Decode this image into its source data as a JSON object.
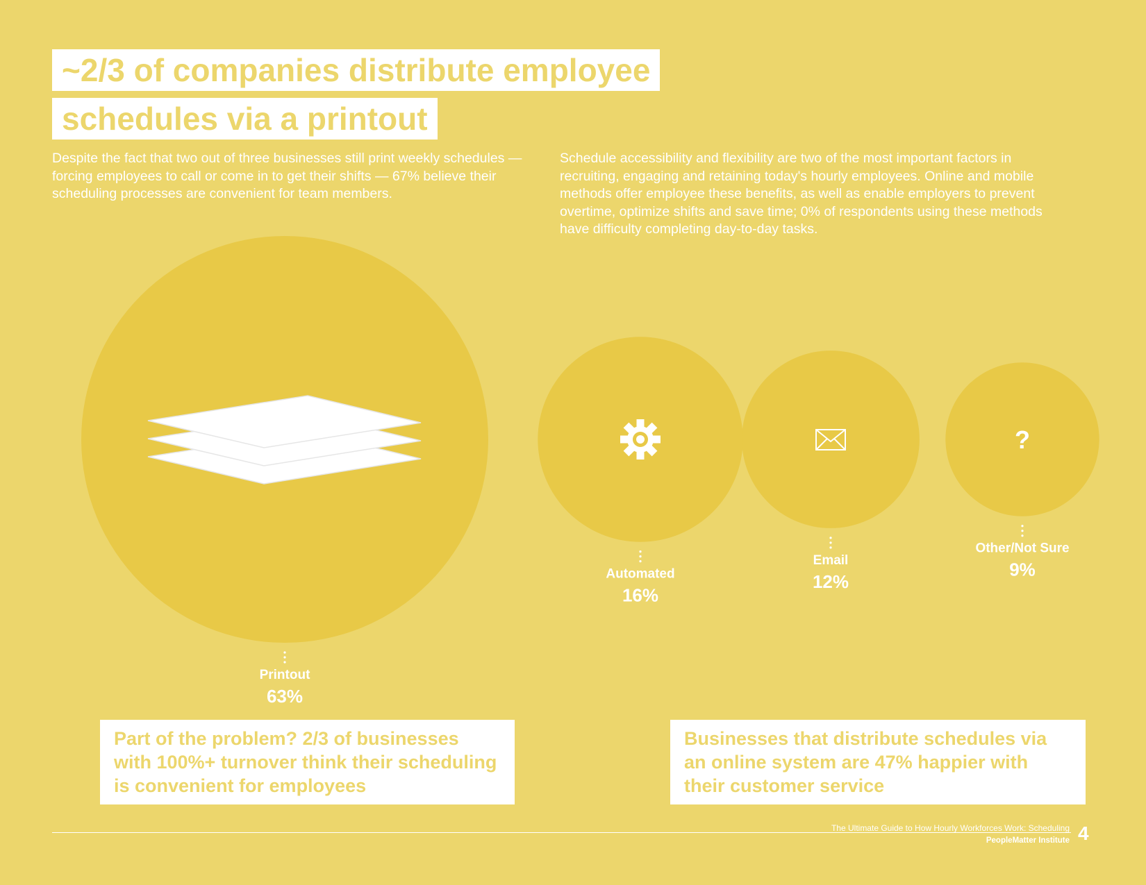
{
  "title": {
    "line1": "~2/3 of companies distribute employee",
    "line2": "schedules via a printout"
  },
  "intro": {
    "left": "Despite the fact that two out of three businesses still print weekly schedules — forcing employees to call or come in to get their shifts — 67% believe their scheduling processes are convenient for team members.",
    "right": "Schedule accessibility and flexibility are two of the most important factors in recruiting, engaging and retaining today's hourly employees. Online and mobile methods offer employee these benefits, as well as enable employers to prevent overtime, optimize shifts and save time; 0% of respondents using these methods have difficulty completing day-to-day tasks."
  },
  "chart_data": {
    "type": "bubble",
    "unit": "%",
    "series": [
      {
        "label": "Printout",
        "value": 63,
        "value_label": "63%",
        "icon": "paper-stack-icon"
      },
      {
        "label": "Automated",
        "value": 16,
        "value_label": "16%",
        "icon": "gear-icon"
      },
      {
        "label": "Email",
        "value": 12,
        "value_label": "12%",
        "icon": "envelope-icon"
      },
      {
        "label": "Other/Not Sure",
        "value": 9,
        "value_label": "9%",
        "icon": "question-mark-icon"
      }
    ]
  },
  "callouts": {
    "left": "Part of the problem? 2/3 of businesses with 100%+ turnover think their scheduling is convenient for employees",
    "right": "Businesses that distribute schedules via an online system are 47% happier with their customer service"
  },
  "footer": {
    "guide_title": "The Ultimate Guide to How Hourly Workforces Work: Scheduling",
    "institute": "PeopleMatter Institute",
    "page_number": "4"
  },
  "colors": {
    "background": "#ecd66c",
    "bubble": "#e8c947",
    "text": "#ffffff"
  }
}
